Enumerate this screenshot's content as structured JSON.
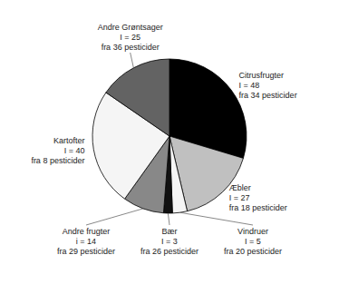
{
  "chart_data": {
    "type": "pie",
    "categories": [
      "Citrusfrugter",
      "Æbler",
      "Vindruer",
      "Bær",
      "Andre frugter",
      "Kartofter",
      "Andre Grøntsager"
    ],
    "values": [
      48,
      27,
      5,
      3,
      14,
      40,
      25
    ],
    "data_labels": true,
    "value_labels": [
      "I = 48",
      "I = 27",
      "I = 5",
      "I = 3",
      "i = 14",
      "I = 40",
      "I = 25"
    ],
    "annotations": [
      "fra 34 pesticider",
      "fra 18 pesticider",
      "fra 20 pesticider",
      "fra 26 pesticider",
      "fra 29 pesticider",
      "fra 8 pesticider",
      "fra 36 pesticider"
    ],
    "colors": [
      "#000000",
      "#c0c0c0",
      "#f5f5f5",
      "#111111",
      "#888888",
      "#f5f5f5",
      "#636363"
    ]
  }
}
